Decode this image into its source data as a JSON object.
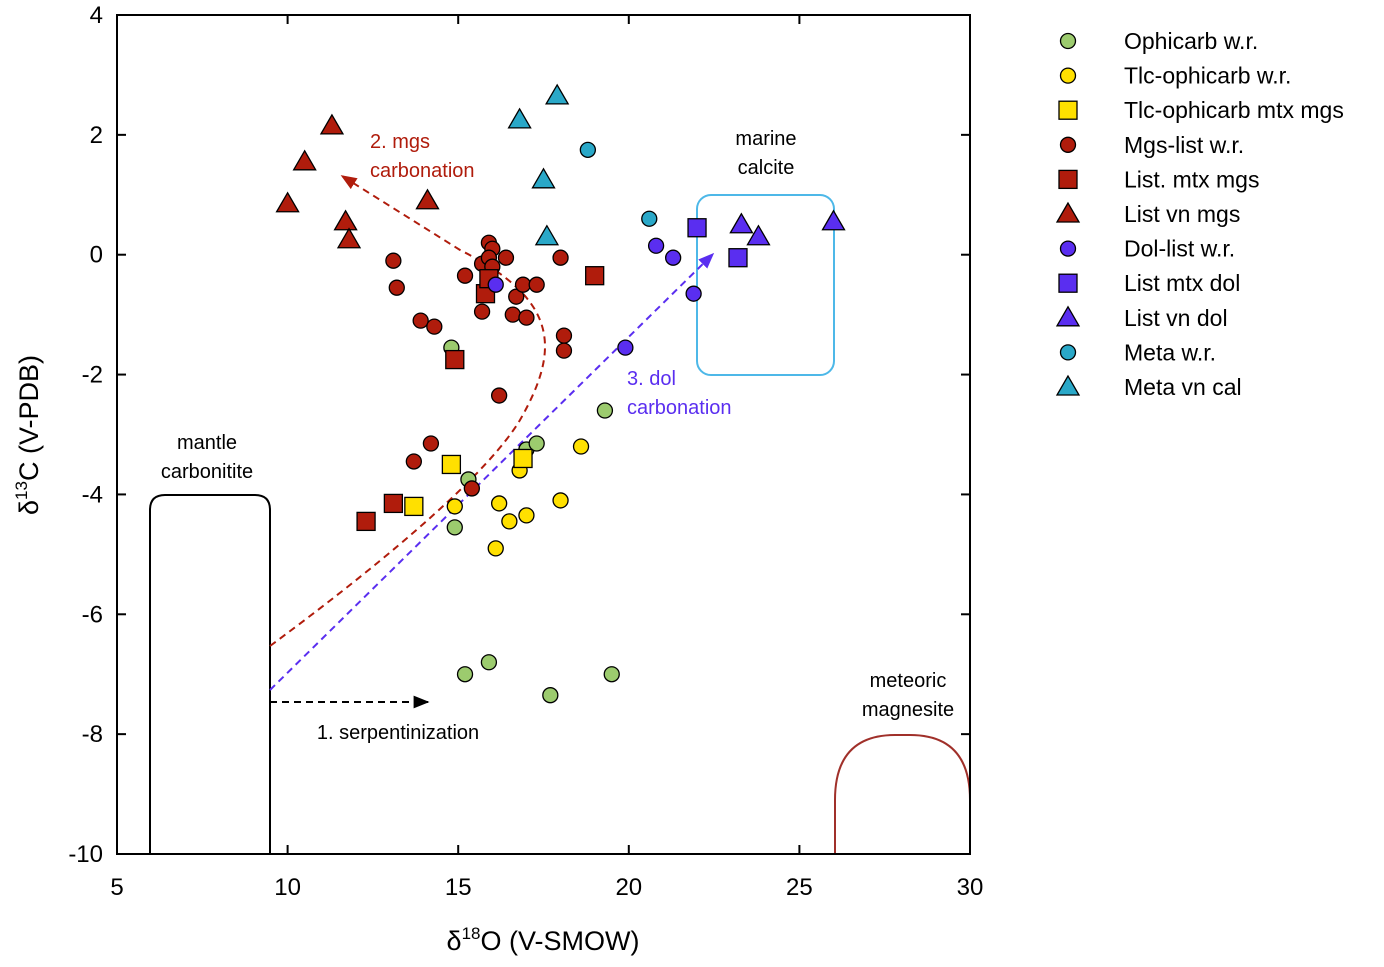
{
  "chart_data": {
    "type": "scatter",
    "xlabel": {
      "prefix": "δ",
      "sup": "18",
      "suffix": "O (V-SMOW)"
    },
    "ylabel": {
      "prefix": "δ",
      "sup": "13",
      "suffix": "C (V-PDB)"
    },
    "xlim": [
      5,
      30
    ],
    "ylim": [
      -10,
      4
    ],
    "xticks": [
      5,
      10,
      15,
      20,
      25,
      30
    ],
    "yticks": [
      -10,
      -8,
      -6,
      -4,
      -2,
      0,
      2,
      4
    ],
    "grid": false,
    "legend_placement": "outside-right",
    "series": [
      {
        "name": "Ophicarb w.r.",
        "marker": "circle",
        "color": "#9ccb6e",
        "points": [
          [
            14.8,
            -1.55
          ],
          [
            14.9,
            -4.55
          ],
          [
            15.3,
            -3.75
          ],
          [
            17.0,
            -3.25
          ],
          [
            17.3,
            -3.15
          ],
          [
            19.3,
            -2.6
          ],
          [
            15.2,
            -7.0
          ],
          [
            15.9,
            -6.8
          ],
          [
            17.7,
            -7.35
          ],
          [
            19.5,
            -7.0
          ]
        ]
      },
      {
        "name": "Tlc-ophicarb w.r.",
        "marker": "circle",
        "color": "#ffe000",
        "points": [
          [
            14.9,
            -4.2
          ],
          [
            16.2,
            -4.15
          ],
          [
            16.5,
            -4.45
          ],
          [
            16.1,
            -4.9
          ],
          [
            17.0,
            -4.35
          ],
          [
            16.8,
            -3.6
          ],
          [
            18.0,
            -4.1
          ],
          [
            18.6,
            -3.2
          ]
        ]
      },
      {
        "name": "Tlc-ophicarb mtx mgs",
        "marker": "square",
        "color": "#ffe000",
        "points": [
          [
            13.7,
            -4.2
          ],
          [
            14.8,
            -3.5
          ],
          [
            16.9,
            -3.4
          ]
        ]
      },
      {
        "name": "Mgs-list w.r.",
        "marker": "circle",
        "color": "#b01c0c",
        "points": [
          [
            13.1,
            -0.1
          ],
          [
            13.2,
            -0.55
          ],
          [
            13.9,
            -1.1
          ],
          [
            14.3,
            -1.2
          ],
          [
            15.2,
            -0.35
          ],
          [
            15.7,
            -0.15
          ],
          [
            15.9,
            0.2
          ],
          [
            16.0,
            0.1
          ],
          [
            15.9,
            -0.05
          ],
          [
            16.0,
            -0.2
          ],
          [
            16.4,
            -0.05
          ],
          [
            16.7,
            -0.7
          ],
          [
            16.9,
            -0.5
          ],
          [
            17.3,
            -0.5
          ],
          [
            16.6,
            -1.0
          ],
          [
            17.0,
            -1.05
          ],
          [
            15.7,
            -0.95
          ],
          [
            18.0,
            -0.05
          ],
          [
            18.1,
            -1.35
          ],
          [
            18.1,
            -1.6
          ],
          [
            16.2,
            -2.35
          ],
          [
            14.2,
            -3.15
          ],
          [
            13.7,
            -3.45
          ],
          [
            15.4,
            -3.9
          ]
        ]
      },
      {
        "name": "List. mtx mgs",
        "marker": "square",
        "color": "#b01c0c",
        "points": [
          [
            15.8,
            -0.65
          ],
          [
            15.9,
            -0.4
          ],
          [
            14.9,
            -1.75
          ],
          [
            19.0,
            -0.35
          ],
          [
            13.1,
            -4.15
          ],
          [
            12.3,
            -4.45
          ]
        ]
      },
      {
        "name": "List vn mgs",
        "marker": "triangle",
        "color": "#b01c0c",
        "points": [
          [
            10.0,
            0.85
          ],
          [
            10.5,
            1.55
          ],
          [
            11.3,
            2.15
          ],
          [
            11.7,
            0.55
          ],
          [
            11.8,
            0.25
          ],
          [
            14.1,
            0.9
          ]
        ]
      },
      {
        "name": "Dol-list w.r.",
        "marker": "circle",
        "color": "#5a2ef0",
        "points": [
          [
            16.1,
            -0.5
          ],
          [
            20.8,
            0.15
          ],
          [
            21.3,
            -0.05
          ],
          [
            21.9,
            -0.65
          ],
          [
            19.9,
            -1.55
          ]
        ]
      },
      {
        "name": "List mtx dol",
        "marker": "square",
        "color": "#5a2ef0",
        "points": [
          [
            22.0,
            0.45
          ],
          [
            23.2,
            -0.05
          ]
        ]
      },
      {
        "name": "List vn dol",
        "marker": "triangle",
        "color": "#5a2ef0",
        "points": [
          [
            23.3,
            0.5
          ],
          [
            23.8,
            0.3
          ],
          [
            26.0,
            0.55
          ]
        ]
      },
      {
        "name": "Meta w.r.",
        "marker": "circle",
        "color": "#2aa8c8",
        "points": [
          [
            18.8,
            1.75
          ],
          [
            20.6,
            0.6
          ]
        ]
      },
      {
        "name": "Meta vn cal",
        "marker": "triangle",
        "color": "#2aa8c8",
        "points": [
          [
            16.8,
            2.25
          ],
          [
            17.9,
            2.65
          ],
          [
            17.5,
            1.25
          ],
          [
            17.6,
            0.3
          ]
        ]
      }
    ],
    "fields": [
      {
        "lines": [
          "mantle",
          "carbonitite"
        ],
        "color": "#000000"
      },
      {
        "lines": [
          "marine",
          "calcite"
        ],
        "color": "#4db8e8"
      },
      {
        "lines": [
          "meteoric",
          "magnesite"
        ],
        "color": "#a0302a"
      }
    ],
    "arrows": [
      {
        "lines": [
          "1. serpentinization"
        ],
        "color": "#000000"
      },
      {
        "lines": [
          "2. mgs",
          "carbonation"
        ],
        "color": "#b01c0c"
      },
      {
        "lines": [
          "3. dol",
          "carbonation"
        ],
        "color": "#5a2ef0"
      }
    ]
  }
}
